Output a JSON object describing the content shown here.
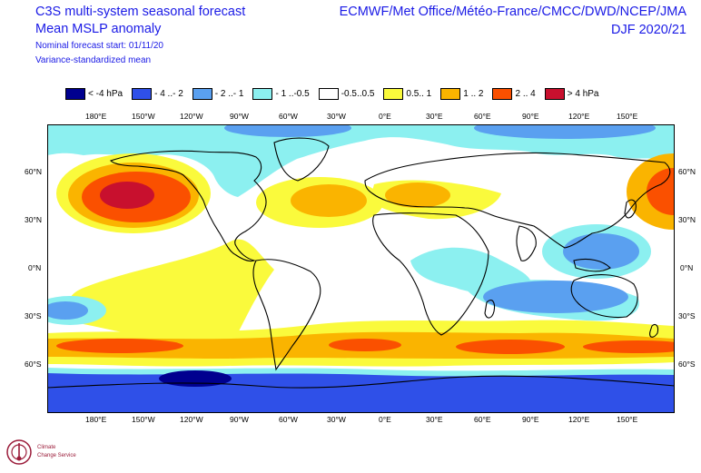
{
  "header": {
    "title_line1": "C3S multi-system seasonal forecast",
    "title_line2": "Mean MSLP anomaly",
    "subtitle_line1": "Nominal forecast start: 01/11/20",
    "subtitle_line2": "Variance-standardized mean",
    "centres": "ECMWF/Met Office/Météo-France/CMCC/DWD/NCEP/JMA",
    "season": "DJF 2020/21"
  },
  "legend": [
    {
      "label": "< -4 hPa",
      "color": "#00008f"
    },
    {
      "label": "- 4 ..- 2",
      "color": "#2f50e8"
    },
    {
      "label": "- 2 ..- 1",
      "color": "#5aa0f0"
    },
    {
      "label": "- 1 ..-0.5",
      "color": "#8cf0f0"
    },
    {
      "label": "-0.5..0.5",
      "color": "#ffffff"
    },
    {
      "label": "0.5.. 1",
      "color": "#fafa3c"
    },
    {
      "label": "1 .. 2",
      "color": "#fab400"
    },
    {
      "label": "2 .. 4",
      "color": "#fa5000"
    },
    {
      "label": "> 4 hPa",
      "color": "#c8102e"
    }
  ],
  "axes": {
    "lon_labels": [
      "180°E",
      "150°W",
      "120°W",
      "90°W",
      "60°W",
      "30°W",
      "0°E",
      "30°E",
      "60°E",
      "90°E",
      "120°E",
      "150°E"
    ],
    "lat_labels": [
      "60°N",
      "30°N",
      "0°N",
      "30°S",
      "60°S"
    ]
  },
  "logo": {
    "line1": "Climate",
    "line2": "Change Service"
  }
}
